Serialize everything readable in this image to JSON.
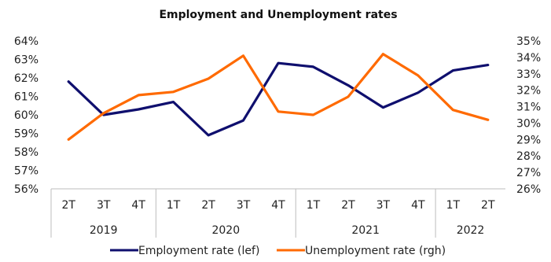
{
  "chart_data": {
    "type": "line",
    "title": "Employment and Unemployment rates",
    "categories": [
      "2T",
      "3T",
      "4T",
      "1T",
      "2T",
      "3T",
      "4T",
      "1T",
      "2T",
      "3T",
      "4T",
      "1T",
      "2T"
    ],
    "years": [
      {
        "label": "2019",
        "count": 3
      },
      {
        "label": "2020",
        "count": 4
      },
      {
        "label": "2021",
        "count": 4
      },
      {
        "label": "2022",
        "count": 2
      }
    ],
    "y_left": {
      "min": 0.56,
      "max": 0.64,
      "step": 0.01,
      "ticks": [
        "56%",
        "57%",
        "58%",
        "59%",
        "60%",
        "61%",
        "62%",
        "63%",
        "64%"
      ]
    },
    "y_right": {
      "min": 0.26,
      "max": 0.35,
      "step": 0.01,
      "ticks": [
        "26%",
        "27%",
        "28%",
        "29%",
        "30%",
        "31%",
        "32%",
        "33%",
        "34%",
        "35%"
      ]
    },
    "grid": false,
    "legend_position": "bottom",
    "series": [
      {
        "name": "Employment rate (lef)",
        "axis": "left",
        "color": "#0f0f6e",
        "values": [
          0.618,
          0.6,
          0.603,
          0.607,
          0.589,
          0.597,
          0.628,
          0.626,
          0.616,
          0.604,
          0.612,
          0.624,
          0.627
        ]
      },
      {
        "name": "Unemployment rate (rgh)",
        "axis": "right",
        "color": "#ff6a00",
        "values": [
          0.29,
          0.306,
          0.317,
          0.319,
          0.327,
          0.341,
          0.307,
          0.305,
          0.316,
          0.342,
          0.329,
          0.308,
          0.302
        ]
      }
    ]
  }
}
